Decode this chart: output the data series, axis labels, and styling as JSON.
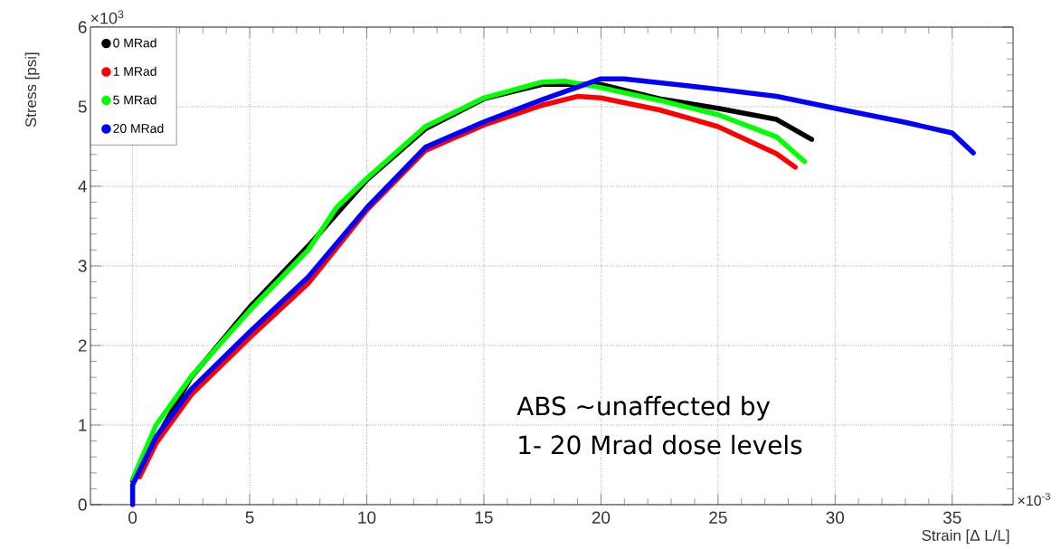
{
  "chart_data": {
    "type": "line",
    "xlabel": "Strain [Δ L/L]",
    "ylabel": "Stress [psi]",
    "xlim": [
      -1.8,
      37.6
    ],
    "ylim": [
      0,
      6
    ],
    "xticks": [
      0,
      5,
      10,
      15,
      20,
      25,
      30,
      35
    ],
    "yticks": [
      0,
      1,
      2,
      3,
      4,
      5,
      6
    ],
    "grid": true,
    "legend": "top left",
    "line_style": "solid",
    "annotations": [
      "×10$^{3}$",
      "×10$^{-3}$",
      "ABS ~unaffected by",
      "1- 20 Mrad dose levels"
    ],
    "series": [
      {
        "name": "0 MRad",
        "color": "#000000",
        "x": [
          0,
          1,
          2.5,
          5,
          7.5,
          10,
          12.5,
          15,
          17.5,
          20,
          22.5,
          25,
          27.5,
          29
        ],
        "values": [
          0.3,
          null,
          1.6,
          2.48,
          3.25,
          4.08,
          4.72,
          5.1,
          5.28,
          5.28,
          5.1,
          4.98,
          4.84,
          4.59
        ]
      },
      {
        "name": "1 MRad",
        "color": "#ff0000",
        "x": [
          0.3,
          1,
          2.5,
          5,
          7.5,
          10,
          12.5,
          15,
          17.5,
          19,
          20,
          22.5,
          25,
          27.5,
          28.3
        ],
        "values": [
          0.35,
          0.77,
          1.38,
          2.1,
          2.78,
          3.7,
          4.45,
          4.77,
          5.02,
          5.13,
          5.11,
          4.96,
          4.75,
          4.41,
          4.24
        ]
      },
      {
        "name": "5 MRad",
        "color": "#00ff00",
        "x": [
          0,
          1,
          2.5,
          5,
          7.5,
          8.7,
          10,
          12.5,
          15,
          17.5,
          18.5,
          20,
          22.5,
          25,
          27.5,
          28.7
        ],
        "values": [
          0.32,
          1.0,
          1.61,
          2.44,
          3.2,
          3.73,
          4.1,
          4.75,
          5.11,
          5.31,
          5.32,
          5.24,
          5.08,
          4.9,
          4.62,
          4.31
        ]
      },
      {
        "name": "20 MRad",
        "color": "#0000ff",
        "x": [
          0,
          0,
          1,
          2.5,
          5,
          7.5,
          10,
          12.5,
          15,
          17.5,
          20,
          21,
          25,
          27.5,
          30,
          32.9,
          35,
          35.9
        ],
        "values": [
          0,
          0.25,
          0.85,
          1.45,
          2.17,
          2.86,
          3.73,
          4.49,
          4.81,
          5.09,
          5.35,
          5.35,
          5.22,
          5.13,
          4.98,
          4.81,
          4.67,
          4.42
        ]
      }
    ]
  }
}
